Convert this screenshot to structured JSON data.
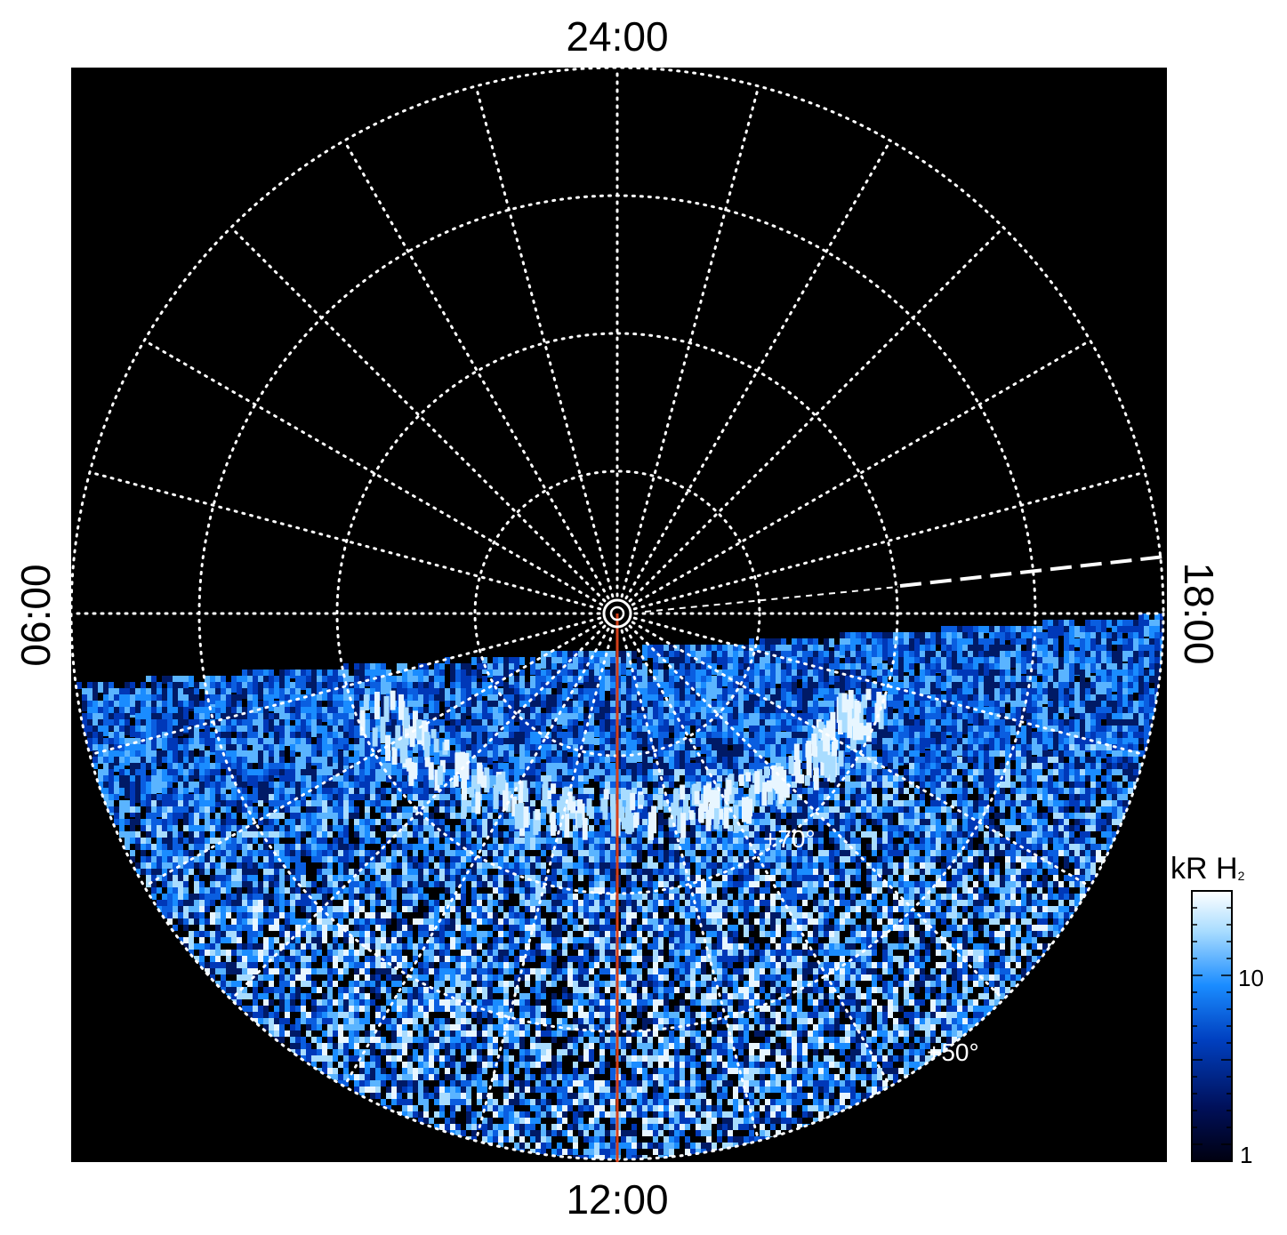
{
  "time_labels": {
    "top": "24:00",
    "bottom": "12:00",
    "left": "06:00",
    "right": "18:00"
  },
  "latitude_labels": {
    "lat70": "+70°",
    "lat50": "+50°"
  },
  "colorbar": {
    "title_main": "kR H",
    "title_sub": "2",
    "tick_high": "10",
    "tick_low": "1",
    "colors": [
      "#000010",
      "#00105a",
      "#0040c0",
      "#1a8cff",
      "#a8dcff",
      "#ffffff"
    ]
  },
  "colors": {
    "background": "#000000",
    "grid": "#ffffff",
    "meridian": "#d4401a",
    "emission": [
      "#001a66",
      "#0038b8",
      "#0a5ee0",
      "#1a8cff",
      "#5ab4ff",
      "#a8dcff",
      "#e8f6ff"
    ]
  }
}
